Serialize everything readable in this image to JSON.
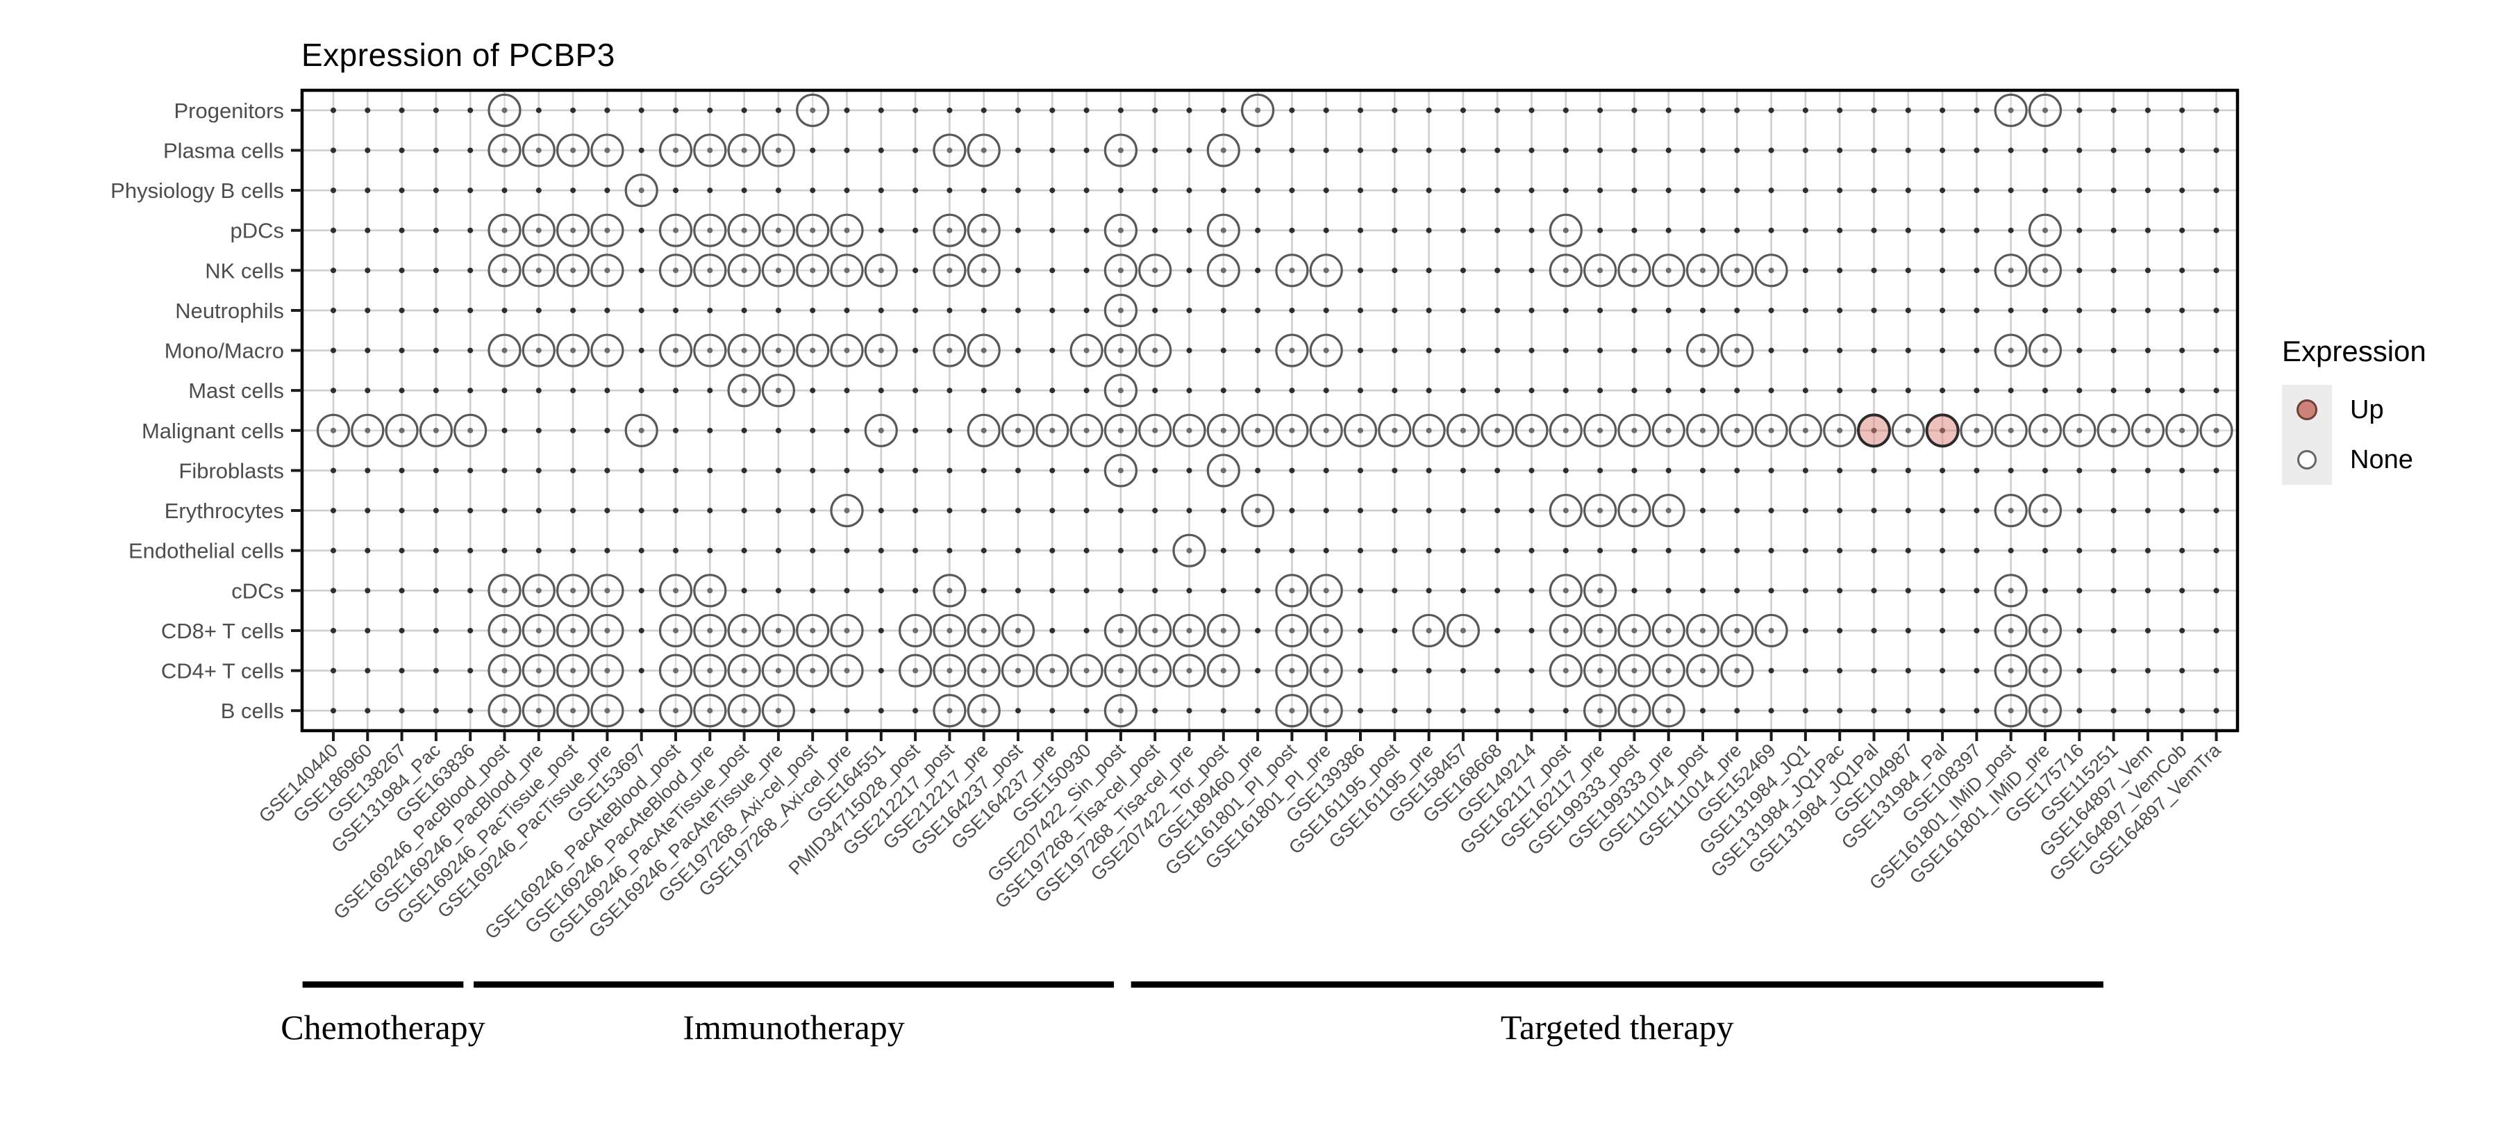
{
  "chart_data": {
    "type": "scatter",
    "title": "Expression of PCBP3",
    "legend": {
      "title": "Expression",
      "position": "right",
      "items": [
        {
          "label": "Up",
          "fill": "#cd837a",
          "border": "#6e4038"
        },
        {
          "label": "None",
          "fill": "#ffffff",
          "border": "#666666"
        }
      ]
    },
    "colors": {
      "up_fill": "rgba(222,132,122,0.5)",
      "up_stroke": "#2b2b2b",
      "none_fill": "rgba(255,255,255,0.3)",
      "none_stroke": "#595959",
      "grid": "#cfcfcf",
      "point": "#2e2e2e",
      "axis_text": "#4d4d4d",
      "border": "#000000"
    },
    "rows": [
      "Progenitors",
      "Plasma cells",
      "Physiology B cells",
      "pDCs",
      "NK cells",
      "Neutrophils",
      "Mono/Macro",
      "Mast cells",
      "Malignant cells",
      "Fibroblasts",
      "Erythrocytes",
      "Endothelial cells",
      "cDCs",
      "CD8+ T cells",
      "CD4+ T cells",
      "B cells"
    ],
    "columns": [
      "GSE140440",
      "GSE186960",
      "GSE138267",
      "GSE131984_Pac",
      "GSE163836",
      "GSE169246_PacBlood_post",
      "GSE169246_PacBlood_pre",
      "GSE169246_PacTissue_post",
      "GSE169246_PacTissue_pre",
      "GSE153697",
      "GSE169246_PacAteBlood_post",
      "GSE169246_PacAteBlood_pre",
      "GSE169246_PacAteTissue_post",
      "GSE169246_PacAteTissue_pre",
      "GSE197268_Axi-cel_post",
      "GSE197268_Axi-cel_pre",
      "GSE164551",
      "PMID34715028_post",
      "GSE212217_post",
      "GSE212217_pre",
      "GSE164237_post",
      "GSE164237_pre",
      "GSE150930",
      "GSE207422_Sin_post",
      "GSE197268_Tisa-cel_post",
      "GSE197268_Tisa-cel_pre",
      "GSE207422_Tor_post",
      "GSE189460_pre",
      "GSE161801_PI_post",
      "GSE161801_PI_pre",
      "GSE139386",
      "GSE161195_post",
      "GSE161195_pre",
      "GSE158457",
      "GSE168668",
      "GSE149214",
      "GSE162117_post",
      "GSE162117_pre",
      "GSE199333_post",
      "GSE199333_pre",
      "GSE111014_post",
      "GSE111014_pre",
      "GSE152469",
      "GSE131984_JQ1",
      "GSE131984_JQ1Pac",
      "GSE131984_JQ1Pal",
      "GSE104987",
      "GSE131984_Pal",
      "GSE108397",
      "GSE161801_IMiD_post",
      "GSE161801_IMiD_pre",
      "GSE175716",
      "GSE115251",
      "GSE164897_Vem",
      "GSE164897_VemCob",
      "GSE164897_VemTra"
    ],
    "groups": [
      {
        "label": "Chemotherapy",
        "span": [
          0.1,
          4.8
        ]
      },
      {
        "label": "Immunotherapy",
        "span": [
          5.1,
          23.8
        ]
      },
      {
        "label": "Targeted therapy",
        "span": [
          24.3,
          52.7
        ]
      }
    ],
    "cells": [
      {
        "row": "Progenitors",
        "dots": [
          6,
          15,
          28,
          50,
          51
        ],
        "up": []
      },
      {
        "row": "Plasma cells",
        "dots": [
          6,
          7,
          8,
          9,
          11,
          12,
          13,
          14,
          19,
          20,
          24,
          27
        ],
        "up": []
      },
      {
        "row": "Physiology B cells",
        "dots": [
          10
        ],
        "up": []
      },
      {
        "row": "pDCs",
        "dots": [
          6,
          7,
          8,
          9,
          11,
          12,
          13,
          14,
          15,
          16,
          19,
          20,
          24,
          27,
          37,
          51
        ],
        "up": []
      },
      {
        "row": "NK cells",
        "dots": [
          6,
          7,
          8,
          9,
          11,
          12,
          13,
          14,
          15,
          16,
          17,
          19,
          20,
          24,
          25,
          27,
          29,
          30,
          37,
          38,
          39,
          40,
          41,
          42,
          43,
          50,
          51
        ],
        "up": []
      },
      {
        "row": "Neutrophils",
        "dots": [
          24
        ],
        "up": []
      },
      {
        "row": "Mono/Macro",
        "dots": [
          6,
          7,
          8,
          9,
          11,
          12,
          13,
          14,
          15,
          16,
          17,
          19,
          20,
          23,
          24,
          25,
          29,
          30,
          41,
          42,
          50,
          51
        ],
        "up": []
      },
      {
        "row": "Mast cells",
        "dots": [
          13,
          14,
          24
        ],
        "up": []
      },
      {
        "row": "Malignant cells",
        "dots": [
          1,
          2,
          3,
          4,
          5,
          10,
          17,
          20,
          21,
          22,
          23,
          24,
          25,
          26,
          27,
          28,
          29,
          30,
          31,
          32,
          33,
          34,
          35,
          36,
          37,
          38,
          39,
          40,
          41,
          42,
          43,
          44,
          45,
          46,
          47,
          48,
          49,
          50,
          51,
          52,
          53,
          54,
          55,
          56
        ],
        "up": [
          46,
          48
        ]
      },
      {
        "row": "Fibroblasts",
        "dots": [
          24,
          27
        ],
        "up": []
      },
      {
        "row": "Erythrocytes",
        "dots": [
          16,
          28,
          37,
          38,
          39,
          40,
          50,
          51
        ],
        "up": []
      },
      {
        "row": "Endothelial cells",
        "dots": [
          26
        ],
        "up": []
      },
      {
        "row": "cDCs",
        "dots": [
          6,
          7,
          8,
          9,
          11,
          12,
          19,
          29,
          30,
          37,
          38,
          50
        ],
        "up": []
      },
      {
        "row": "CD8+ T cells",
        "dots": [
          6,
          7,
          8,
          9,
          11,
          12,
          13,
          14,
          15,
          16,
          18,
          19,
          20,
          21,
          24,
          25,
          26,
          27,
          29,
          30,
          33,
          34,
          37,
          38,
          39,
          40,
          41,
          42,
          43,
          50,
          51
        ],
        "up": []
      },
      {
        "row": "CD4+ T cells",
        "dots": [
          6,
          7,
          8,
          9,
          11,
          12,
          13,
          14,
          15,
          16,
          18,
          19,
          20,
          21,
          22,
          23,
          24,
          25,
          26,
          27,
          29,
          30,
          37,
          38,
          39,
          40,
          41,
          42,
          50,
          51
        ],
        "up": []
      },
      {
        "row": "B cells",
        "dots": [
          6,
          7,
          8,
          9,
          11,
          12,
          13,
          14,
          19,
          20,
          24,
          29,
          30,
          38,
          39,
          40,
          50,
          51
        ],
        "up": []
      }
    ]
  }
}
